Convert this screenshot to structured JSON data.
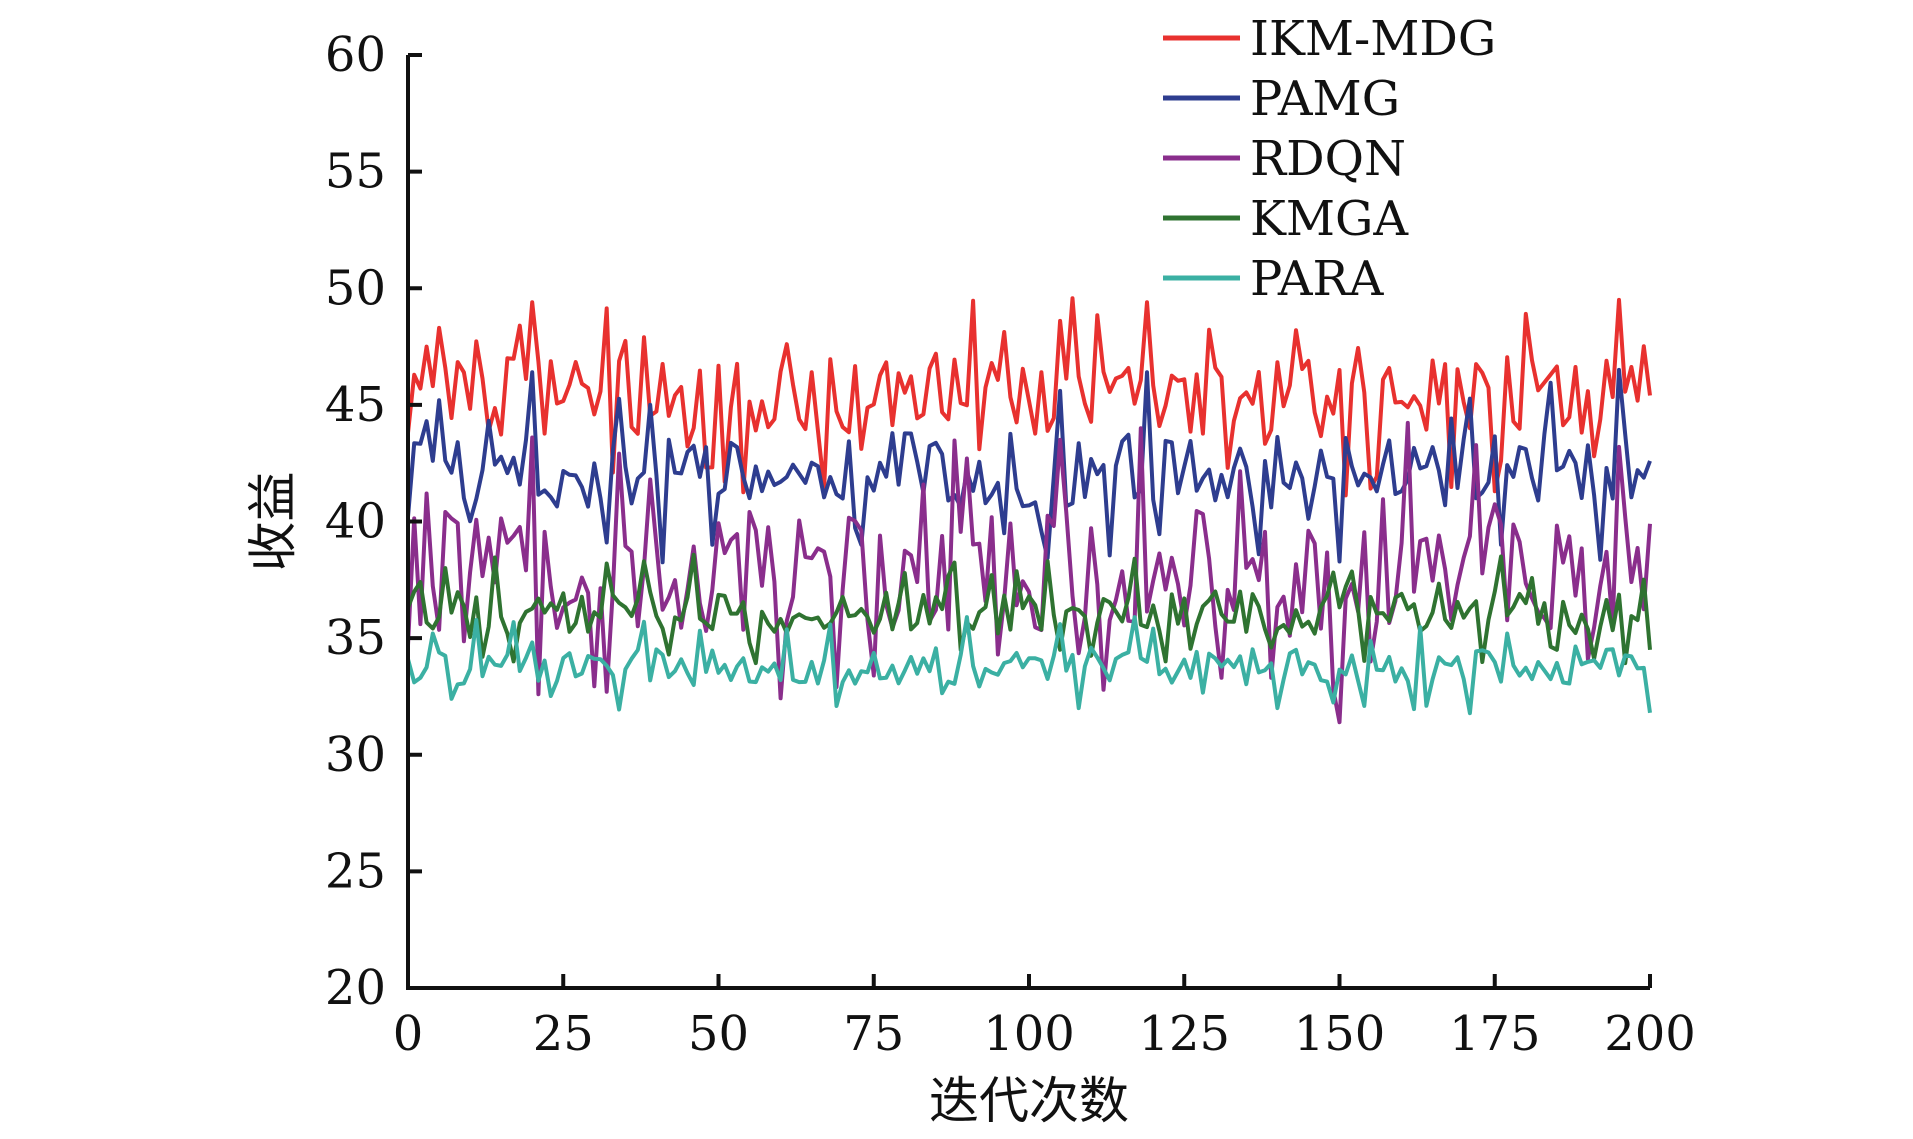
{
  "chart_data": {
    "type": "line",
    "xlabel": "迭代次数",
    "ylabel": "收益",
    "xlim": [
      0,
      200
    ],
    "ylim": [
      20,
      60
    ],
    "xticks": [
      0,
      25,
      50,
      75,
      100,
      125,
      150,
      175,
      200
    ],
    "yticks": [
      20,
      25,
      30,
      35,
      40,
      45,
      50,
      55,
      60
    ],
    "grid": false,
    "legend_position": "top-right",
    "series": [
      {
        "name": "IKM-MDG",
        "color": "#e8312f",
        "base": 45.3,
        "amp": 1.7,
        "outlier": 2.6,
        "anchors": [
          [
            0,
            43.8
          ],
          [
            2,
            45.7
          ],
          [
            3,
            47.5
          ],
          [
            5,
            48.3
          ],
          [
            18,
            48.4
          ],
          [
            20,
            49.4
          ],
          [
            33,
            42.1
          ],
          [
            38,
            47.9
          ],
          [
            51,
            41.7
          ],
          [
            92,
            43.1
          ],
          [
            105,
            48.6
          ],
          [
            119,
            49.4
          ],
          [
            132,
            42.3
          ],
          [
            143,
            48.2
          ],
          [
            175,
            41.3
          ],
          [
            180,
            48.9
          ],
          [
            195,
            49.5
          ],
          [
            200,
            45.4
          ]
        ]
      },
      {
        "name": "PAMG",
        "color": "#2e3d8f",
        "base": 42.2,
        "amp": 1.6,
        "outlier": 2.4,
        "anchors": [
          [
            0,
            40.2
          ],
          [
            3,
            44.3
          ],
          [
            5,
            45.2
          ],
          [
            20,
            46.4
          ],
          [
            32,
            39.1
          ],
          [
            39,
            45.0
          ],
          [
            49,
            39.0
          ],
          [
            73,
            39.0
          ],
          [
            96,
            39.5
          ],
          [
            105,
            45.6
          ],
          [
            119,
            46.4
          ],
          [
            137,
            38.6
          ],
          [
            176,
            39.0
          ],
          [
            195,
            46.5
          ],
          [
            200,
            42.6
          ]
        ]
      },
      {
        "name": "RDQN",
        "color": "#8a2e8c",
        "base": 37.9,
        "amp": 2.6,
        "outlier": 4.0,
        "anchors": [
          [
            0,
            34.7
          ],
          [
            3,
            41.2
          ],
          [
            20,
            43.6
          ],
          [
            32,
            32.7
          ],
          [
            39,
            41.8
          ],
          [
            69,
            32.9
          ],
          [
            95,
            34.3
          ],
          [
            105,
            43.5
          ],
          [
            118,
            44.0
          ],
          [
            131,
            33.3
          ],
          [
            139,
            33.3
          ],
          [
            155,
            34.0
          ],
          [
            190,
            34.1
          ],
          [
            195,
            43.2
          ],
          [
            200,
            39.9
          ]
        ]
      },
      {
        "name": "KMGA",
        "color": "#2f7331",
        "base": 36.1,
        "amp": 0.9,
        "outlier": 1.6,
        "anchors": [
          [
            0,
            36.3
          ],
          [
            2,
            37.4
          ],
          [
            6,
            38.0
          ],
          [
            16,
            35.2
          ],
          [
            32,
            38.2
          ],
          [
            38,
            38.3
          ],
          [
            55,
            34.8
          ],
          [
            103,
            38.3
          ],
          [
            105,
            34.5
          ],
          [
            117,
            38.4
          ],
          [
            127,
            35.6
          ],
          [
            139,
            34.6
          ],
          [
            176,
            38.5
          ],
          [
            185,
            34.5
          ],
          [
            200,
            34.5
          ]
        ]
      },
      {
        "name": "PARA",
        "color": "#3bb0a3",
        "base": 33.8,
        "amp": 0.8,
        "outlier": 1.3,
        "anchors": [
          [
            0,
            34.1
          ],
          [
            2,
            33.3
          ],
          [
            4,
            35.2
          ],
          [
            7,
            32.4
          ],
          [
            38,
            35.7
          ],
          [
            90,
            35.9
          ],
          [
            105,
            35.6
          ],
          [
            108,
            32.0
          ],
          [
            117,
            35.9
          ],
          [
            140,
            32.0
          ],
          [
            164,
            32.1
          ],
          [
            177,
            35.2
          ],
          [
            200,
            31.8
          ]
        ]
      }
    ]
  }
}
